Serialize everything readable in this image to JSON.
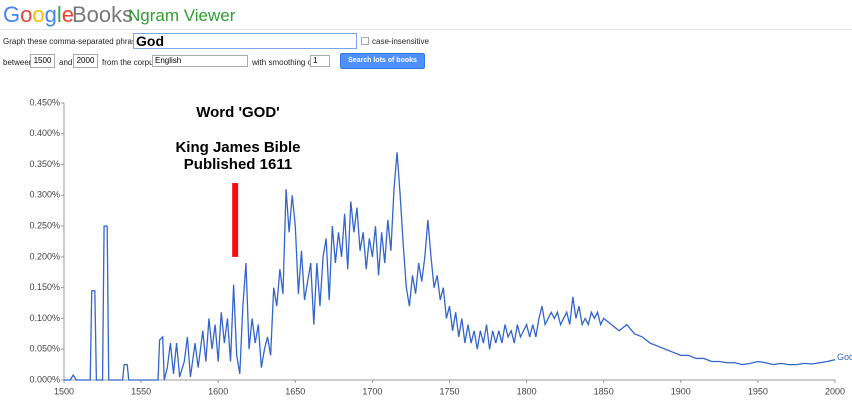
{
  "header": {
    "logo_letters": [
      "G",
      "o",
      "o",
      "g",
      "l",
      "e"
    ],
    "product": "Books",
    "app": "Ngram Viewer"
  },
  "form": {
    "phrases_label": "Graph these comma-separated phrases:",
    "phrase": "God",
    "case_insensitive": "case-insensitive",
    "between": "between",
    "start_year": "1500",
    "and": "and",
    "end_year": "2000",
    "corpus_label": "from the corpus",
    "corpus": "English",
    "smoothing_label": "with smoothing of",
    "smoothing": "1",
    "button": "Search lots of books"
  },
  "chart_data": {
    "type": "line",
    "annotations": [
      "Word 'GOD'",
      "King James Bible",
      "Published 1611"
    ],
    "marker": {
      "x": 1611,
      "y": [
        0.2,
        0.32
      ],
      "color": "#ee1111"
    },
    "x": [
      1500,
      1504,
      1506,
      1508,
      1517,
      1518,
      1520,
      1521,
      1525,
      1526,
      1528,
      1529,
      1538,
      1539,
      1541,
      1542,
      1561,
      1562,
      1564,
      1565,
      1567,
      1569,
      1571,
      1573,
      1575,
      1578,
      1580,
      1582,
      1585,
      1587,
      1590,
      1592,
      1594,
      1596,
      1598,
      1600,
      1602,
      1604,
      1606,
      1608,
      1610,
      1612,
      1614,
      1616,
      1618,
      1620,
      1622,
      1624,
      1626,
      1628,
      1630,
      1632,
      1634,
      1636,
      1638,
      1640,
      1642,
      1644,
      1646,
      1648,
      1650,
      1652,
      1654,
      1656,
      1658,
      1660,
      1662,
      1664,
      1666,
      1668,
      1670,
      1672,
      1674,
      1676,
      1678,
      1680,
      1682,
      1684,
      1686,
      1688,
      1690,
      1692,
      1694,
      1696,
      1698,
      1700,
      1702,
      1704,
      1706,
      1708,
      1710,
      1712,
      1714,
      1716,
      1718,
      1720,
      1722,
      1724,
      1726,
      1728,
      1730,
      1732,
      1734,
      1736,
      1738,
      1740,
      1742,
      1744,
      1746,
      1748,
      1750,
      1752,
      1754,
      1756,
      1758,
      1760,
      1762,
      1764,
      1766,
      1768,
      1770,
      1772,
      1774,
      1776,
      1778,
      1780,
      1782,
      1784,
      1786,
      1788,
      1790,
      1792,
      1794,
      1796,
      1798,
      1800,
      1802,
      1804,
      1806,
      1808,
      1810,
      1812,
      1814,
      1816,
      1818,
      1820,
      1822,
      1824,
      1826,
      1828,
      1830,
      1832,
      1834,
      1836,
      1838,
      1840,
      1842,
      1844,
      1846,
      1848,
      1850,
      1855,
      1860,
      1865,
      1870,
      1875,
      1880,
      1885,
      1890,
      1895,
      1900,
      1905,
      1910,
      1915,
      1920,
      1925,
      1930,
      1935,
      1940,
      1945,
      1950,
      1955,
      1960,
      1965,
      1970,
      1975,
      1980,
      1985,
      1990,
      1995,
      2000
    ],
    "series": [
      {
        "name": "God",
        "color": "#3366cc",
        "values": [
          0,
          0,
          0.008,
          0,
          0,
          0.145,
          0.145,
          0,
          0,
          0.25,
          0.25,
          0,
          0,
          0.025,
          0.025,
          0,
          0,
          0.065,
          0.07,
          0,
          0.02,
          0.06,
          0.01,
          0.06,
          0.005,
          0.03,
          0.07,
          0.005,
          0.06,
          0.02,
          0.08,
          0.03,
          0.1,
          0.05,
          0.09,
          0.03,
          0.11,
          0.06,
          0.1,
          0.03,
          0.155,
          0.04,
          0.01,
          0.12,
          0.19,
          0.05,
          0.1,
          0.06,
          0.09,
          0.02,
          0.05,
          0.07,
          0.04,
          0.15,
          0.12,
          0.18,
          0.14,
          0.31,
          0.24,
          0.3,
          0.25,
          0.14,
          0.21,
          0.13,
          0.16,
          0.19,
          0.09,
          0.19,
          0.12,
          0.2,
          0.23,
          0.13,
          0.25,
          0.19,
          0.24,
          0.2,
          0.27,
          0.18,
          0.29,
          0.24,
          0.28,
          0.21,
          0.24,
          0.18,
          0.23,
          0.2,
          0.25,
          0.17,
          0.24,
          0.19,
          0.26,
          0.21,
          0.31,
          0.37,
          0.3,
          0.22,
          0.15,
          0.12,
          0.17,
          0.14,
          0.19,
          0.16,
          0.2,
          0.26,
          0.2,
          0.15,
          0.17,
          0.13,
          0.15,
          0.1,
          0.12,
          0.08,
          0.11,
          0.07,
          0.1,
          0.06,
          0.09,
          0.06,
          0.08,
          0.05,
          0.08,
          0.06,
          0.09,
          0.05,
          0.08,
          0.06,
          0.08,
          0.06,
          0.09,
          0.07,
          0.08,
          0.06,
          0.09,
          0.07,
          0.08,
          0.09,
          0.07,
          0.09,
          0.07,
          0.1,
          0.12,
          0.09,
          0.1,
          0.11,
          0.1,
          0.11,
          0.09,
          0.1,
          0.11,
          0.09,
          0.135,
          0.1,
          0.12,
          0.09,
          0.1,
          0.09,
          0.11,
          0.1,
          0.11,
          0.09,
          0.1,
          0.09,
          0.08,
          0.09,
          0.075,
          0.07,
          0.06,
          0.055,
          0.05,
          0.045,
          0.04,
          0.04,
          0.035,
          0.035,
          0.03,
          0.03,
          0.028,
          0.028,
          0.025,
          0.027,
          0.03,
          0.028,
          0.025,
          0.027,
          0.025,
          0.025,
          0.027,
          0.026,
          0.028,
          0.03,
          0.033
        ]
      }
    ],
    "xlim": [
      1500,
      2000
    ],
    "xticks": [
      1500,
      1550,
      1600,
      1650,
      1700,
      1750,
      1800,
      1850,
      1900,
      1950,
      2000
    ],
    "ylim": [
      0,
      0.45
    ],
    "yticks": [
      {
        "value": 0,
        "label": "0.000%"
      },
      {
        "value": 0.05,
        "label": "0.050%"
      },
      {
        "value": 0.1,
        "label": "0.100%"
      },
      {
        "value": 0.15,
        "label": "0.150%"
      },
      {
        "value": 0.2,
        "label": "0.200%"
      },
      {
        "value": 0.25,
        "label": "0.250%"
      },
      {
        "value": 0.3,
        "label": "0.300%"
      },
      {
        "value": 0.35,
        "label": "0.350%"
      },
      {
        "value": 0.4,
        "label": "0.400%"
      },
      {
        "value": 0.45,
        "label": "0.450%"
      }
    ],
    "grid": false
  }
}
